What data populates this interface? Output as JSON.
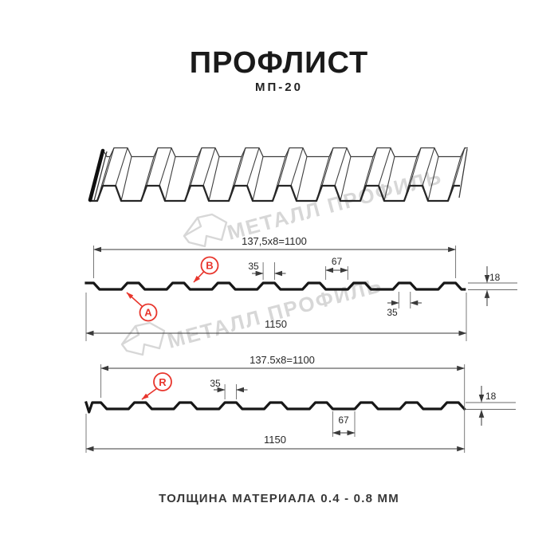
{
  "header": {
    "title": "ПРОФЛИСТ",
    "subtitle": "МП-20"
  },
  "footer": {
    "caption": "ТОЛЩИНА МАТЕРИАЛА 0.4 - 0.8 ММ"
  },
  "watermark": {
    "text": "МЕТАЛЛ ПРОФИЛЬ"
  },
  "colors": {
    "accent_red": "#e8352c",
    "line_black": "#171717",
    "dim_gray": "#3a3a3a",
    "watermark_gray": "#d7d7d7"
  },
  "diagram1": {
    "labels": {
      "a": "A",
      "b": "B"
    },
    "dims": {
      "pitch": "137,5x8=1100",
      "rib_top_width": "35",
      "valley_width": "67",
      "height": "18",
      "rib_top_width_bottom": "35",
      "total_width": "1150"
    }
  },
  "diagram2": {
    "labels": {
      "r": "R"
    },
    "dims": {
      "pitch": "137.5x8=1100",
      "rib_top_width": "35",
      "valley_width": "67",
      "height": "18",
      "total_width": "1150"
    }
  }
}
